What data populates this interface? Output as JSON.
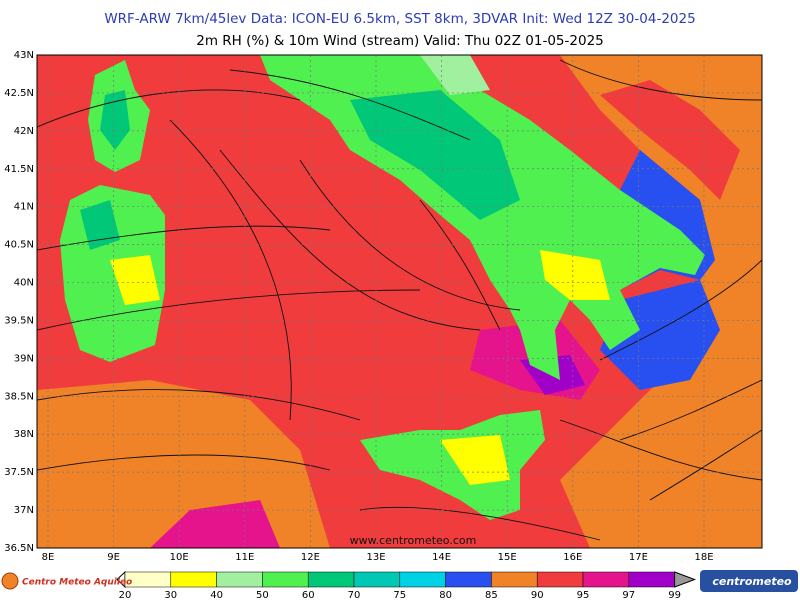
{
  "header": {
    "line1": "WRF-ARW 7km/45lev  Data: ICON-EU 6.5km, SST 8km, 3DVAR  Init: Wed 12Z 30-04-2025",
    "line2": "2m RH (%) & 10m Wind (stream)  Valid: Thu 02Z 01-05-2025"
  },
  "map": {
    "lat_ticks": [
      {
        "value": 43,
        "label": "43N"
      },
      {
        "value": 42.5,
        "label": "42.5N"
      },
      {
        "value": 42,
        "label": "42N"
      },
      {
        "value": 41.5,
        "label": "41.5N"
      },
      {
        "value": 41,
        "label": "41N"
      },
      {
        "value": 40.5,
        "label": "40.5N"
      },
      {
        "value": 40,
        "label": "40N"
      },
      {
        "value": 39.5,
        "label": "39.5N"
      },
      {
        "value": 39,
        "label": "39N"
      },
      {
        "value": 38.5,
        "label": "38.5N"
      },
      {
        "value": 38,
        "label": "38N"
      },
      {
        "value": 37.5,
        "label": "37.5N"
      },
      {
        "value": 37,
        "label": "37N"
      },
      {
        "value": 36.5,
        "label": "36.5N"
      }
    ],
    "lon_ticks": [
      {
        "value": 8,
        "label": "8E"
      },
      {
        "value": 9,
        "label": "9E"
      },
      {
        "value": 10,
        "label": "10E"
      },
      {
        "value": 11,
        "label": "11E"
      },
      {
        "value": 12,
        "label": "12E"
      },
      {
        "value": 13,
        "label": "13E"
      },
      {
        "value": 14,
        "label": "14E"
      },
      {
        "value": 15,
        "label": "15E"
      },
      {
        "value": 16,
        "label": "16E"
      },
      {
        "value": 17,
        "label": "17E"
      },
      {
        "value": 18,
        "label": "18E"
      }
    ],
    "watermark": "www.centrometeo.com"
  },
  "colorbar": {
    "levels": [
      20,
      30,
      40,
      50,
      60,
      70,
      75,
      80,
      85,
      90,
      95,
      97,
      99
    ],
    "colors": [
      "#ffffc8",
      "#ffff00",
      "#a0f0a0",
      "#50f050",
      "#00c878",
      "#00c8b4",
      "#00d2e6",
      "#2850f0",
      "#f08228",
      "#f03c3c",
      "#e6148c",
      "#a000c8"
    ]
  },
  "logos": {
    "left": "Centro Meteo Aquileo",
    "right": "centrometeo"
  }
}
